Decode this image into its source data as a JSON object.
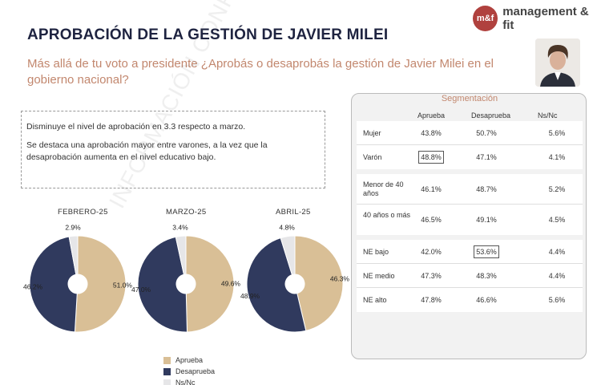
{
  "header": {
    "title": "APROBACIÓN DE LA GESTIÓN DE JAVIER MILEI",
    "subtitle": "Más allá de tu voto a presidente ¿Aprobás o desaprobás la gestión de Javier Milei en el gobierno nacional?",
    "brand_mark": "m&f",
    "brand_name": "management & fit"
  },
  "notes": {
    "line1": "Disminuye el nivel de aprobación en 3.3 respecto a marzo.",
    "line2": "Se destaca una aprobación mayor entre varones, a la vez que la desaprobación aumenta en el nivel educativo  bajo."
  },
  "watermark": "INFORMACIÓN CONFIDENCIAL",
  "colors": {
    "aprueba": "#d9bf96",
    "desaprueba": "#303a5e",
    "nsnc": "#e6e6e8"
  },
  "chart_data": {
    "type": "pie",
    "variant": "donut",
    "series_names": [
      "Aprueba",
      "Desaprueba",
      "Ns/Nc"
    ],
    "charts": [
      {
        "label": "FEBRERO-25",
        "values": [
          51.0,
          46.2,
          2.9
        ],
        "labels": [
          "51.0%",
          "46.2%",
          "2.9%"
        ]
      },
      {
        "label": "MARZO-25",
        "values": [
          49.6,
          47.0,
          3.4
        ],
        "labels": [
          "49.6%",
          "47.0%",
          "3.4%"
        ]
      },
      {
        "label": "ABRIL-25",
        "values": [
          46.3,
          48.9,
          4.8
        ],
        "labels": [
          "46.3%",
          "48.9%",
          "4.8%"
        ]
      }
    ],
    "legend": [
      "Aprueba",
      "Desaprueba",
      "Ns/Nc"
    ]
  },
  "segmentation": {
    "title": "Segmentación",
    "columns": [
      "Aprueba",
      "Desaprueba",
      "Ns/Nc"
    ],
    "groups": [
      {
        "rows": [
          {
            "label": "Mujer",
            "values": [
              "43.8%",
              "50.7%",
              "5.6%"
            ],
            "highlight": -1
          },
          {
            "label": "Varón",
            "values": [
              "48.8%",
              "47.1%",
              "4.1%"
            ],
            "highlight": 0
          }
        ]
      },
      {
        "rows": [
          {
            "label": "Menor de 40 años",
            "values": [
              "46.1%",
              "48.7%",
              "5.2%"
            ],
            "highlight": -1
          },
          {
            "label": "40 años o más",
            "values": [
              "46.5%",
              "49.1%",
              "4.5%"
            ],
            "highlight": -1
          }
        ]
      },
      {
        "rows": [
          {
            "label": "NE bajo",
            "values": [
              "42.0%",
              "53.6%",
              "4.4%"
            ],
            "highlight": 1
          },
          {
            "label": "NE medio",
            "values": [
              "47.3%",
              "48.3%",
              "4.4%"
            ],
            "highlight": -1
          },
          {
            "label": "NE alto",
            "values": [
              "47.8%",
              "46.6%",
              "5.6%"
            ],
            "highlight": -1
          }
        ]
      }
    ]
  }
}
